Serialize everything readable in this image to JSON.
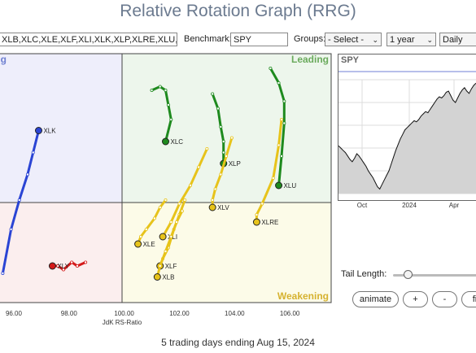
{
  "title": "Relative Rotation Graph (RRG)",
  "toolbar": {
    "symbols_value": "XLB,XLC,XLE,XLF,XLI,XLK,XLP,XLRE,XLU,XLV,XLY",
    "benchmark_label": "Benchmark:",
    "benchmark_value": "SPY",
    "groups_label": "Groups:",
    "groups_value": "- Select -",
    "period_value": "1 year",
    "frequency_value": "Daily"
  },
  "quadrants": {
    "improving": "Improving",
    "leading": "Leading",
    "weakening": "Weakening"
  },
  "colors": {
    "XLK": "#2a44d4",
    "XLY": "#d41a1a",
    "XLC": "#1e8a1e",
    "XLP": "#1e8a1e",
    "XLU": "#1e8a1e",
    "XLV": "#e7c31a",
    "XLRE": "#e7c31a",
    "XLI": "#e7c31a",
    "XLE": "#e7c31a",
    "XLF": "#e7c31a",
    "XLB": "#e7c31a"
  },
  "chart_data": {
    "type": "scatter",
    "xlabel": "JdK RS-Ratio",
    "xlim": [
      95.5,
      107.5
    ],
    "ylim": [
      96.8,
      103.6
    ],
    "x_ticks": [
      "96.00",
      "98.00",
      "100.00",
      "102.00",
      "104.00",
      "106.00"
    ],
    "series": [
      {
        "name": "XLK",
        "points": [
          [
            95.6,
            97.6
          ],
          [
            95.9,
            98.8
          ],
          [
            96.2,
            99.6
          ],
          [
            96.5,
            100.3
          ],
          [
            96.7,
            100.9
          ],
          [
            96.9,
            101.5
          ]
        ]
      },
      {
        "name": "XLY",
        "points": [
          [
            98.6,
            97.9
          ],
          [
            98.3,
            97.8
          ],
          [
            98.1,
            97.9
          ],
          [
            97.8,
            97.7
          ],
          [
            97.6,
            97.8
          ],
          [
            97.4,
            97.8
          ]
        ]
      },
      {
        "name": "XLC",
        "points": [
          [
            101.0,
            102.6
          ],
          [
            101.3,
            102.7
          ],
          [
            101.5,
            102.6
          ],
          [
            101.6,
            102.2
          ],
          [
            101.7,
            101.8
          ],
          [
            101.5,
            101.2
          ]
        ]
      },
      {
        "name": "XLP",
        "points": [
          [
            103.2,
            102.5
          ],
          [
            103.4,
            102.1
          ],
          [
            103.5,
            101.6
          ],
          [
            103.6,
            101.2
          ],
          [
            103.6,
            100.9
          ],
          [
            103.6,
            100.6
          ]
        ]
      },
      {
        "name": "XLU",
        "points": [
          [
            105.3,
            103.2
          ],
          [
            105.6,
            102.8
          ],
          [
            105.8,
            102.3
          ],
          [
            105.8,
            101.7
          ],
          [
            105.7,
            100.8
          ],
          [
            105.6,
            100.0
          ]
        ]
      },
      {
        "name": "XLV",
        "points": [
          [
            103.9,
            101.3
          ],
          [
            103.7,
            100.8
          ],
          [
            103.5,
            100.3
          ],
          [
            103.3,
            99.9
          ],
          [
            103.2,
            99.6
          ],
          [
            103.2,
            99.4
          ]
        ]
      },
      {
        "name": "XLRE",
        "points": [
          [
            105.7,
            101.8
          ],
          [
            105.6,
            101.1
          ],
          [
            105.4,
            100.2
          ],
          [
            105.0,
            99.5
          ],
          [
            104.8,
            99.2
          ],
          [
            104.8,
            99.0
          ]
        ]
      },
      {
        "name": "XLI",
        "points": [
          [
            103.0,
            101.0
          ],
          [
            102.7,
            100.5
          ],
          [
            102.4,
            100.0
          ],
          [
            102.0,
            99.5
          ],
          [
            101.7,
            99.0
          ],
          [
            101.4,
            98.6
          ]
        ]
      },
      {
        "name": "XLE",
        "points": [
          [
            101.5,
            99.6
          ],
          [
            101.3,
            99.4
          ],
          [
            101.1,
            99.1
          ],
          [
            100.8,
            98.8
          ],
          [
            100.6,
            98.6
          ],
          [
            100.5,
            98.4
          ]
        ]
      },
      {
        "name": "XLF",
        "points": [
          [
            102.2,
            99.6
          ],
          [
            102.0,
            99.2
          ],
          [
            101.8,
            98.8
          ],
          [
            101.6,
            98.3
          ],
          [
            101.4,
            98.0
          ],
          [
            101.3,
            97.8
          ]
        ]
      },
      {
        "name": "XLB",
        "points": [
          [
            102.1,
            99.3
          ],
          [
            101.9,
            99.0
          ],
          [
            101.7,
            98.6
          ],
          [
            101.5,
            98.2
          ],
          [
            101.3,
            97.8
          ],
          [
            101.2,
            97.5
          ]
        ]
      }
    ]
  },
  "spy_chart": {
    "type": "line",
    "title": "SPY",
    "x_ticks": [
      "Oct",
      "2024",
      "Apr"
    ],
    "values": [
      0.42,
      0.4,
      0.38,
      0.36,
      0.33,
      0.3,
      0.28,
      0.31,
      0.35,
      0.33,
      0.3,
      0.27,
      0.24,
      0.2,
      0.17,
      0.14,
      0.1,
      0.06,
      0.04,
      0.08,
      0.12,
      0.16,
      0.2,
      0.26,
      0.32,
      0.38,
      0.43,
      0.48,
      0.52,
      0.56,
      0.58,
      0.6,
      0.62,
      0.64,
      0.63,
      0.65,
      0.68,
      0.7,
      0.72,
      0.71,
      0.74,
      0.77,
      0.8,
      0.83,
      0.85,
      0.84,
      0.86,
      0.89,
      0.9,
      0.86,
      0.82,
      0.8,
      0.84,
      0.88,
      0.91,
      0.93,
      0.9,
      0.88,
      0.92,
      0.95,
      0.97
    ]
  },
  "controls": {
    "tail_length_label": "Tail Length:",
    "animate_label": "animate",
    "plus_label": "+",
    "minus_label": "-",
    "fit_label": "fit"
  },
  "footer": "5 trading days ending Aug 15, 2024"
}
